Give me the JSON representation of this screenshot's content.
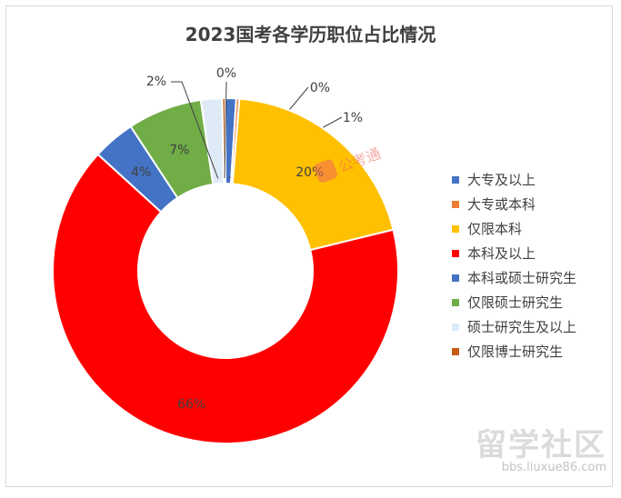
{
  "chart_data": {
    "type": "pie",
    "title": "2023国考各学历职位占比情况",
    "series": [
      {
        "name": "大专及以上",
        "value": 1,
        "label": "1%",
        "color": "#4472c4",
        "label_style": "callout"
      },
      {
        "name": "大专或本科",
        "value": 0,
        "label": "0%",
        "color": "#ed7d31",
        "label_style": "callout"
      },
      {
        "name": "仅限本科",
        "value": 20,
        "label": "20%",
        "color": "#ffc000",
        "label_style": "inside"
      },
      {
        "name": "本科及以上",
        "value": 66,
        "label": "66%",
        "color": "#ff0000",
        "label_style": "inside"
      },
      {
        "name": "本科或硕士研究生",
        "value": 4,
        "label": "4%",
        "color": "#4472c4",
        "label_style": "inside"
      },
      {
        "name": "仅限硕士研究生",
        "value": 7,
        "label": "7%",
        "color": "#70ad47",
        "label_style": "inside"
      },
      {
        "name": "硕士研究生及以上",
        "value": 2,
        "label": "2%",
        "color": "#deebf7",
        "label_style": "callout"
      },
      {
        "name": "仅限博士研究生",
        "value": 0,
        "label": "0%",
        "color": "#c55a11",
        "label_style": "callout"
      }
    ],
    "legend_position": "right"
  },
  "watermark": {
    "text": "公考通"
  },
  "brand": {
    "name": "留学社区",
    "url": "bbs.liuxue86.com"
  }
}
